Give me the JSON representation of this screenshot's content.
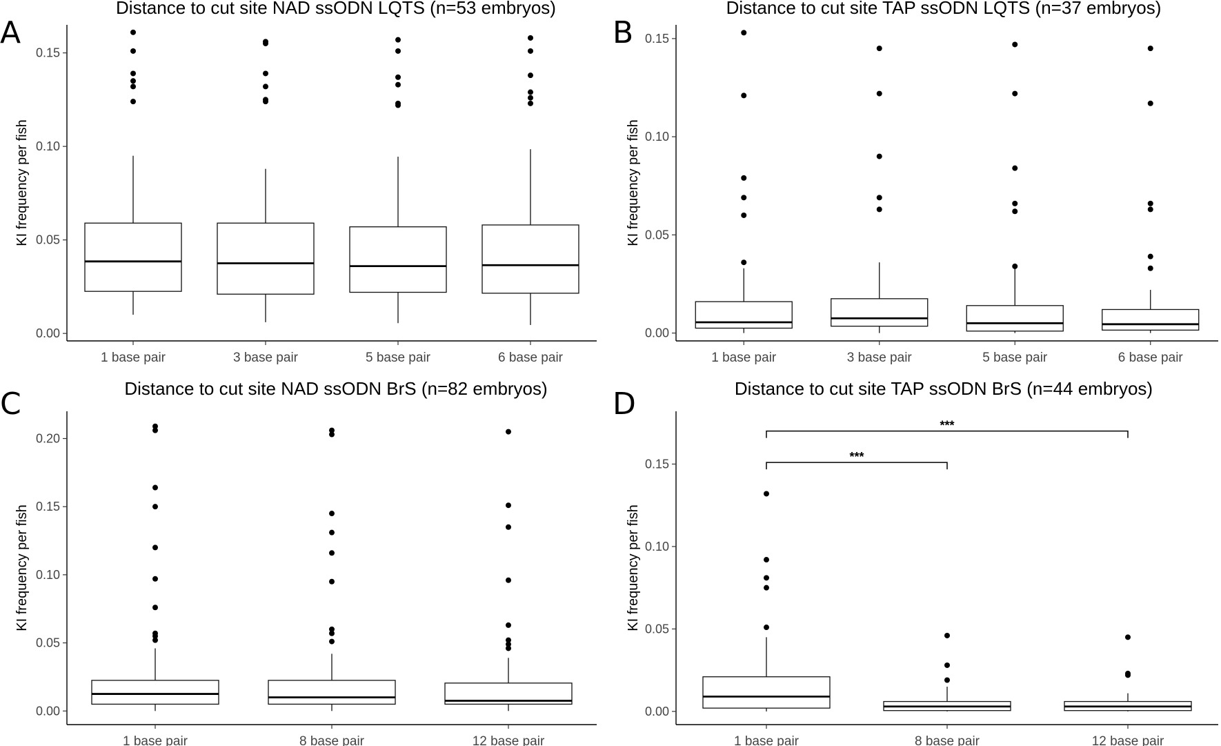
{
  "chart_data": [
    {
      "panel": "A",
      "type": "boxplot",
      "title": "Distance to cut site NAD ssODN LQTS (n=53 embryos)",
      "xlabel": "",
      "ylabel": "KI frequency per fish",
      "ylim": [
        -0.004,
        0.165
      ],
      "yticks": [
        0.0,
        0.05,
        0.1,
        0.15
      ],
      "ytick_labels": [
        "0.00",
        "0.05",
        "0.10",
        "0.15"
      ],
      "categories": [
        "1 base pair",
        "3 base pair",
        "5 base pair",
        "6 base pair"
      ],
      "boxes": [
        {
          "whisker_low": 0.01,
          "q1": 0.0225,
          "median": 0.0385,
          "q3": 0.059,
          "whisker_high": 0.095,
          "outliers": [
            0.124,
            0.132,
            0.135,
            0.139,
            0.151,
            0.161
          ]
        },
        {
          "whisker_low": 0.006,
          "q1": 0.021,
          "median": 0.0375,
          "q3": 0.059,
          "whisker_high": 0.088,
          "outliers": [
            0.124,
            0.125,
            0.132,
            0.139,
            0.155,
            0.156
          ]
        },
        {
          "whisker_low": 0.0055,
          "q1": 0.022,
          "median": 0.036,
          "q3": 0.057,
          "whisker_high": 0.0945,
          "outliers": [
            0.122,
            0.123,
            0.133,
            0.137,
            0.151,
            0.157
          ]
        },
        {
          "whisker_low": 0.0045,
          "q1": 0.0215,
          "median": 0.0365,
          "q3": 0.058,
          "whisker_high": 0.0985,
          "outliers": [
            0.123,
            0.126,
            0.129,
            0.138,
            0.151,
            0.158
          ]
        }
      ],
      "significance": []
    },
    {
      "panel": "B",
      "type": "boxplot",
      "title": "Distance to cut site TAP ssODN LQTS (n=37 embryos)",
      "xlabel": "",
      "ylabel": "KI frequency per fish",
      "ylim": [
        -0.004,
        0.157
      ],
      "yticks": [
        0.0,
        0.05,
        0.1,
        0.15
      ],
      "ytick_labels": [
        "0.00",
        "0.05",
        "0.10",
        "0.15"
      ],
      "categories": [
        "1 base pair",
        "3 base pair",
        "5 base pair",
        "6 base pair"
      ],
      "boxes": [
        {
          "whisker_low": 0.0,
          "q1": 0.0025,
          "median": 0.0055,
          "q3": 0.016,
          "whisker_high": 0.033,
          "outliers": [
            0.036,
            0.06,
            0.069,
            0.079,
            0.121,
            0.153
          ]
        },
        {
          "whisker_low": 0.0,
          "q1": 0.0035,
          "median": 0.0075,
          "q3": 0.0175,
          "whisker_high": 0.036,
          "outliers": [
            0.063,
            0.069,
            0.09,
            0.122,
            0.145
          ]
        },
        {
          "whisker_low": 0.0,
          "q1": 0.001,
          "median": 0.005,
          "q3": 0.014,
          "whisker_high": 0.034,
          "outliers": [
            0.034,
            0.062,
            0.066,
            0.084,
            0.122,
            0.147
          ]
        },
        {
          "whisker_low": 0.0,
          "q1": 0.0015,
          "median": 0.0045,
          "q3": 0.012,
          "whisker_high": 0.022,
          "outliers": [
            0.033,
            0.039,
            0.063,
            0.066,
            0.117,
            0.145
          ]
        }
      ],
      "significance": []
    },
    {
      "panel": "C",
      "type": "boxplot",
      "title": "Distance to cut site NAD ssODN BrS (n=82 embryos)",
      "xlabel": "",
      "ylabel": "KI frequency per fish",
      "ylim": [
        -0.01,
        0.22
      ],
      "yticks": [
        0.0,
        0.05,
        0.1,
        0.15,
        0.2
      ],
      "ytick_labels": [
        "0.00",
        "0.05",
        "0.10",
        "0.15",
        "0.20"
      ],
      "categories": [
        "1 base pair",
        "8 base pair",
        "12 base pair"
      ],
      "boxes": [
        {
          "whisker_low": 0.0,
          "q1": 0.005,
          "median": 0.0125,
          "q3": 0.0225,
          "whisker_high": 0.046,
          "outliers": [
            0.052,
            0.055,
            0.057,
            0.076,
            0.097,
            0.12,
            0.15,
            0.164,
            0.206,
            0.209
          ]
        },
        {
          "whisker_low": 0.0,
          "q1": 0.005,
          "median": 0.01,
          "q3": 0.0225,
          "whisker_high": 0.042,
          "outliers": [
            0.051,
            0.057,
            0.06,
            0.095,
            0.116,
            0.131,
            0.145,
            0.203,
            0.206
          ]
        },
        {
          "whisker_low": 0.0,
          "q1": 0.005,
          "median": 0.0075,
          "q3": 0.0205,
          "whisker_high": 0.039,
          "outliers": [
            0.046,
            0.049,
            0.052,
            0.063,
            0.096,
            0.135,
            0.151,
            0.205
          ]
        }
      ],
      "significance": []
    },
    {
      "panel": "D",
      "type": "boxplot",
      "title": "Distance to cut site TAP ssODN BrS (n=44 embryos)",
      "xlabel": "",
      "ylabel": "KI frequency per fish",
      "ylim": [
        -0.008,
        0.182
      ],
      "yticks": [
        0.0,
        0.05,
        0.1,
        0.15
      ],
      "ytick_labels": [
        "0.00",
        "0.05",
        "0.10",
        "0.15"
      ],
      "categories": [
        "1 base pair",
        "8 base pair",
        "12 base pair"
      ],
      "boxes": [
        {
          "whisker_low": 0.0,
          "q1": 0.002,
          "median": 0.009,
          "q3": 0.021,
          "whisker_high": 0.045,
          "outliers": [
            0.051,
            0.075,
            0.081,
            0.092,
            0.132
          ]
        },
        {
          "whisker_low": 0.0,
          "q1": 0.0005,
          "median": 0.003,
          "q3": 0.006,
          "whisker_high": 0.015,
          "outliers": [
            0.019,
            0.028,
            0.046
          ]
        },
        {
          "whisker_low": 0.0,
          "q1": 0.0005,
          "median": 0.003,
          "q3": 0.006,
          "whisker_high": 0.011,
          "outliers": [
            0.022,
            0.023,
            0.045
          ]
        }
      ],
      "significance": [
        {
          "from": 0,
          "to": 2,
          "y": 0.17,
          "label": "***"
        },
        {
          "from": 0,
          "to": 1,
          "y": 0.151,
          "label": "***"
        }
      ]
    }
  ]
}
